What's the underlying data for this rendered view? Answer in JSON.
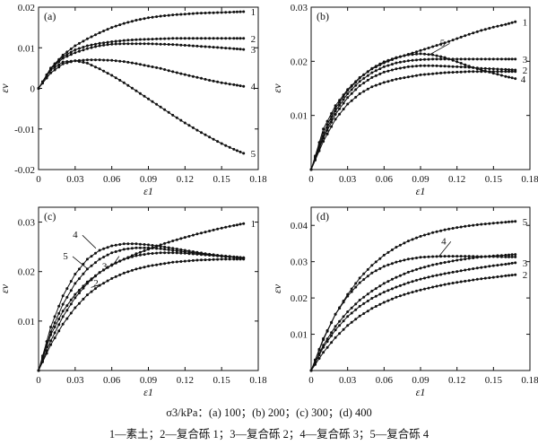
{
  "caption": {
    "line1": "σ3/kPa：(a) 100；(b) 200；(c) 300；(d) 400",
    "line2": "1—素土；2—复合砾 1；3—复合砾 2；4—复合砾 3；5—复合砾 4"
  },
  "colors": {
    "line": "#111111",
    "marker": "#111111",
    "axis": "#111111"
  },
  "chart_data": [
    {
      "type": "line",
      "panel_label": "(a)",
      "xlabel": "ε1",
      "ylabel": "εv",
      "xlim": [
        0,
        0.18
      ],
      "ylim": [
        -0.02,
        0.02
      ],
      "xticks": [
        "0",
        "0.03",
        "0.06",
        "0.09",
        "0.12",
        "0.15",
        "0.18"
      ],
      "yticks": [
        "-0.02",
        "-0.01",
        "0",
        "0.01",
        "0.02"
      ],
      "xticks_v": [
        0,
        0.03,
        0.06,
        0.09,
        0.12,
        0.15,
        0.18
      ],
      "yticks_v": [
        -0.02,
        -0.01,
        0,
        0.01,
        0.02
      ],
      "series": [
        {
          "name": "1",
          "x": [
            0,
            0.01,
            0.02,
            0.03,
            0.04,
            0.05,
            0.06,
            0.07,
            0.08,
            0.09,
            0.1,
            0.11,
            0.12,
            0.13,
            0.14,
            0.15,
            0.16,
            0.168
          ],
          "y": [
            0,
            0.005,
            0.0082,
            0.0105,
            0.0122,
            0.0137,
            0.015,
            0.016,
            0.0168,
            0.0174,
            0.0178,
            0.0181,
            0.0183,
            0.0185,
            0.0186,
            0.0187,
            0.0188,
            0.0189
          ]
        },
        {
          "name": "2",
          "x": [
            0,
            0.01,
            0.02,
            0.03,
            0.04,
            0.05,
            0.06,
            0.07,
            0.08,
            0.09,
            0.1,
            0.11,
            0.12,
            0.13,
            0.14,
            0.15,
            0.16,
            0.168
          ],
          "y": [
            0,
            0.005,
            0.0078,
            0.0095,
            0.0105,
            0.0111,
            0.0115,
            0.0118,
            0.012,
            0.0121,
            0.0122,
            0.0123,
            0.0123,
            0.0123,
            0.0123,
            0.0123,
            0.0123,
            0.0123
          ]
        },
        {
          "name": "3",
          "x": [
            0,
            0.01,
            0.02,
            0.03,
            0.04,
            0.05,
            0.06,
            0.07,
            0.08,
            0.09,
            0.1,
            0.11,
            0.12,
            0.13,
            0.14,
            0.15,
            0.16,
            0.168
          ],
          "y": [
            0,
            0.0048,
            0.0074,
            0.0088,
            0.0098,
            0.0105,
            0.0109,
            0.011,
            0.011,
            0.011,
            0.0109,
            0.0108,
            0.0106,
            0.0104,
            0.0102,
            0.01,
            0.0098,
            0.0096
          ]
        },
        {
          "name": "4",
          "x": [
            0,
            0.01,
            0.02,
            0.03,
            0.04,
            0.05,
            0.06,
            0.07,
            0.08,
            0.09,
            0.1,
            0.11,
            0.12,
            0.13,
            0.14,
            0.15,
            0.16,
            0.168
          ],
          "y": [
            0,
            0.0038,
            0.006,
            0.0068,
            0.007,
            0.007,
            0.0069,
            0.0066,
            0.0061,
            0.0055,
            0.0049,
            0.0041,
            0.0034,
            0.0027,
            0.002,
            0.0014,
            0.0009,
            0.0005
          ]
        },
        {
          "name": "5",
          "x": [
            0,
            0.01,
            0.02,
            0.03,
            0.04,
            0.05,
            0.06,
            0.07,
            0.08,
            0.09,
            0.1,
            0.11,
            0.12,
            0.13,
            0.14,
            0.15,
            0.16,
            0.168
          ],
          "y": [
            0,
            0.0045,
            0.0065,
            0.0068,
            0.0062,
            0.0048,
            0.0032,
            0.0014,
            -0.0006,
            -0.0026,
            -0.0046,
            -0.0066,
            -0.0085,
            -0.0103,
            -0.012,
            -0.0136,
            -0.015,
            -0.016
          ]
        }
      ]
    },
    {
      "type": "line",
      "panel_label": "(b)",
      "xlabel": "ε1",
      "ylabel": "εv",
      "xlim": [
        0,
        0.18
      ],
      "ylim": [
        0,
        0.03
      ],
      "xticks": [
        "0",
        "0.03",
        "0.06",
        "0.09",
        "0.12",
        "0.15",
        "0.18"
      ],
      "yticks": [
        "0.01",
        "0.02",
        "0.03"
      ],
      "xticks_v": [
        0,
        0.03,
        0.06,
        0.09,
        0.12,
        0.15,
        0.18
      ],
      "yticks_v": [
        0.01,
        0.02,
        0.03
      ],
      "series": [
        {
          "name": "1",
          "x": [
            0,
            0.01,
            0.02,
            0.03,
            0.04,
            0.05,
            0.06,
            0.07,
            0.08,
            0.09,
            0.1,
            0.11,
            0.12,
            0.13,
            0.14,
            0.15,
            0.16,
            0.168
          ],
          "y": [
            0,
            0.0075,
            0.0118,
            0.0148,
            0.017,
            0.0186,
            0.0197,
            0.0206,
            0.0213,
            0.022,
            0.0227,
            0.0234,
            0.0242,
            0.025,
            0.0257,
            0.0263,
            0.0268,
            0.0273
          ]
        },
        {
          "name": "2",
          "x": [
            0,
            0.01,
            0.02,
            0.03,
            0.04,
            0.05,
            0.06,
            0.07,
            0.08,
            0.09,
            0.1,
            0.11,
            0.12,
            0.13,
            0.14,
            0.15,
            0.16,
            0.168
          ],
          "y": [
            0,
            0.0058,
            0.0102,
            0.0133,
            0.0155,
            0.017,
            0.018,
            0.0186,
            0.019,
            0.0192,
            0.0192,
            0.0191,
            0.019,
            0.0189,
            0.0187,
            0.0186,
            0.0185,
            0.0184
          ]
        },
        {
          "name": "3",
          "x": [
            0,
            0.01,
            0.02,
            0.03,
            0.04,
            0.05,
            0.06,
            0.07,
            0.08,
            0.09,
            0.1,
            0.11,
            0.12,
            0.13,
            0.14,
            0.15,
            0.16,
            0.168
          ],
          "y": [
            0,
            0.0062,
            0.0108,
            0.014,
            0.0163,
            0.0179,
            0.019,
            0.0197,
            0.0201,
            0.0203,
            0.0204,
            0.0204,
            0.0204,
            0.0204,
            0.0204,
            0.0204,
            0.0204,
            0.0204
          ]
        },
        {
          "name": "4",
          "x": [
            0,
            0.01,
            0.02,
            0.03,
            0.04,
            0.05,
            0.06,
            0.07,
            0.08,
            0.09,
            0.1,
            0.11,
            0.12,
            0.13,
            0.14,
            0.15,
            0.16,
            0.168
          ],
          "y": [
            0,
            0.0052,
            0.0093,
            0.0121,
            0.014,
            0.0153,
            0.0161,
            0.0167,
            0.0171,
            0.0175,
            0.0177,
            0.0179,
            0.018,
            0.0181,
            0.0181,
            0.0181,
            0.0181,
            0.0181
          ]
        },
        {
          "name": "5",
          "x": [
            0,
            0.01,
            0.02,
            0.03,
            0.04,
            0.05,
            0.06,
            0.07,
            0.08,
            0.09,
            0.1,
            0.11,
            0.12,
            0.13,
            0.14,
            0.15,
            0.16,
            0.168
          ],
          "y": [
            0,
            0.0068,
            0.0113,
            0.0146,
            0.0169,
            0.0187,
            0.0199,
            0.0207,
            0.0212,
            0.0214,
            0.0212,
            0.0207,
            0.0199,
            0.0191,
            0.0184,
            0.0178,
            0.0172,
            0.0168
          ]
        }
      ]
    },
    {
      "type": "line",
      "panel_label": "(c)",
      "xlabel": "ε1",
      "ylabel": "εv",
      "xlim": [
        0,
        0.18
      ],
      "ylim": [
        0,
        0.033
      ],
      "xticks": [
        "0",
        "0.03",
        "0.06",
        "0.09",
        "0.12",
        "0.15",
        "0.18"
      ],
      "yticks": [
        "0.01",
        "0.02",
        "0.03"
      ],
      "xticks_v": [
        0,
        0.03,
        0.06,
        0.09,
        0.12,
        0.15,
        0.18
      ],
      "yticks_v": [
        0.01,
        0.02,
        0.03
      ],
      "series": [
        {
          "name": "1",
          "x": [
            0,
            0.01,
            0.02,
            0.03,
            0.04,
            0.05,
            0.06,
            0.07,
            0.08,
            0.09,
            0.1,
            0.11,
            0.12,
            0.13,
            0.14,
            0.15,
            0.16,
            0.168
          ],
          "y": [
            0,
            0.0072,
            0.012,
            0.0154,
            0.0179,
            0.0198,
            0.0213,
            0.0225,
            0.0236,
            0.0245,
            0.0254,
            0.0262,
            0.0269,
            0.0276,
            0.0282,
            0.0288,
            0.0293,
            0.0297
          ]
        },
        {
          "name": "2",
          "x": [
            0,
            0.01,
            0.02,
            0.03,
            0.04,
            0.05,
            0.06,
            0.07,
            0.08,
            0.09,
            0.1,
            0.11,
            0.12,
            0.13,
            0.14,
            0.15,
            0.16,
            0.168
          ],
          "y": [
            0,
            0.0052,
            0.0094,
            0.0127,
            0.0153,
            0.0172,
            0.0186,
            0.0197,
            0.0205,
            0.0211,
            0.0215,
            0.0219,
            0.0221,
            0.0223,
            0.0224,
            0.0225,
            0.0225,
            0.0225
          ]
        },
        {
          "name": "3",
          "x": [
            0,
            0.01,
            0.02,
            0.03,
            0.04,
            0.05,
            0.06,
            0.07,
            0.08,
            0.09,
            0.1,
            0.11,
            0.12,
            0.13,
            0.14,
            0.15,
            0.16,
            0.168
          ],
          "y": [
            0,
            0.006,
            0.0109,
            0.0147,
            0.0176,
            0.0198,
            0.0214,
            0.0225,
            0.0232,
            0.0236,
            0.0238,
            0.0238,
            0.0237,
            0.0235,
            0.0233,
            0.0231,
            0.0229,
            0.0228
          ]
        },
        {
          "name": "4",
          "x": [
            0,
            0.01,
            0.02,
            0.03,
            0.04,
            0.05,
            0.06,
            0.07,
            0.08,
            0.09,
            0.1,
            0.11,
            0.12,
            0.13,
            0.14,
            0.15,
            0.16,
            0.168
          ],
          "y": [
            0,
            0.0088,
            0.0151,
            0.0195,
            0.0225,
            0.0243,
            0.0252,
            0.0256,
            0.0256,
            0.0254,
            0.0251,
            0.0247,
            0.0243,
            0.0239,
            0.0235,
            0.0232,
            0.023,
            0.0228
          ]
        },
        {
          "name": "5",
          "x": [
            0,
            0.01,
            0.02,
            0.03,
            0.04,
            0.05,
            0.06,
            0.07,
            0.08,
            0.09,
            0.1,
            0.11,
            0.12,
            0.13,
            0.14,
            0.15,
            0.16,
            0.168
          ],
          "y": [
            0,
            0.0078,
            0.0134,
            0.0176,
            0.0205,
            0.0225,
            0.0238,
            0.0245,
            0.0248,
            0.0248,
            0.0246,
            0.0243,
            0.024,
            0.0237,
            0.0234,
            0.0231,
            0.0229,
            0.0227
          ]
        }
      ]
    },
    {
      "type": "line",
      "panel_label": "(d)",
      "xlabel": "ε1",
      "ylabel": "εv",
      "xlim": [
        0,
        0.18
      ],
      "ylim": [
        0,
        0.045
      ],
      "xticks": [
        "0",
        "0.03",
        "0.06",
        "0.09",
        "0.12",
        "0.15",
        "0.18"
      ],
      "yticks": [
        "0.01",
        "0.02",
        "0.03",
        "0.04"
      ],
      "xticks_v": [
        0,
        0.03,
        0.06,
        0.09,
        0.12,
        0.15,
        0.18
      ],
      "yticks_v": [
        0.01,
        0.02,
        0.03,
        0.04
      ],
      "series": [
        {
          "name": "1",
          "x": [
            0,
            0.01,
            0.02,
            0.03,
            0.04,
            0.05,
            0.06,
            0.07,
            0.08,
            0.09,
            0.1,
            0.11,
            0.12,
            0.13,
            0.14,
            0.15,
            0.16,
            0.168
          ],
          "y": [
            0,
            0.007,
            0.0122,
            0.0162,
            0.0194,
            0.0219,
            0.024,
            0.0257,
            0.0271,
            0.0282,
            0.0291,
            0.0298,
            0.0304,
            0.0309,
            0.0313,
            0.0316,
            0.0318,
            0.032
          ]
        },
        {
          "name": "2",
          "x": [
            0,
            0.01,
            0.02,
            0.03,
            0.04,
            0.05,
            0.06,
            0.07,
            0.08,
            0.09,
            0.1,
            0.11,
            0.12,
            0.13,
            0.14,
            0.15,
            0.16,
            0.168
          ],
          "y": [
            0,
            0.005,
            0.0091,
            0.0124,
            0.015,
            0.0171,
            0.0188,
            0.0202,
            0.0213,
            0.0222,
            0.023,
            0.0237,
            0.0243,
            0.0248,
            0.0253,
            0.0257,
            0.0261,
            0.0264
          ]
        },
        {
          "name": "3",
          "x": [
            0,
            0.01,
            0.02,
            0.03,
            0.04,
            0.05,
            0.06,
            0.07,
            0.08,
            0.09,
            0.1,
            0.11,
            0.12,
            0.13,
            0.14,
            0.15,
            0.16,
            0.168
          ],
          "y": [
            0,
            0.0064,
            0.0112,
            0.0149,
            0.0177,
            0.0199,
            0.0216,
            0.023,
            0.0242,
            0.0252,
            0.026,
            0.0267,
            0.0273,
            0.0279,
            0.0284,
            0.0289,
            0.0293,
            0.0297
          ]
        },
        {
          "name": "4",
          "x": [
            0,
            0.01,
            0.02,
            0.03,
            0.04,
            0.05,
            0.06,
            0.07,
            0.08,
            0.09,
            0.1,
            0.11,
            0.12,
            0.13,
            0.14,
            0.15,
            0.16,
            0.168
          ],
          "y": [
            0,
            0.0088,
            0.0155,
            0.0205,
            0.0242,
            0.0269,
            0.0287,
            0.0299,
            0.0307,
            0.0312,
            0.0314,
            0.0315,
            0.0315,
            0.0315,
            0.0314,
            0.0314,
            0.0313,
            0.0313
          ]
        },
        {
          "name": "5",
          "x": [
            0,
            0.01,
            0.02,
            0.03,
            0.04,
            0.05,
            0.06,
            0.07,
            0.08,
            0.09,
            0.1,
            0.11,
            0.12,
            0.13,
            0.14,
            0.15,
            0.16,
            0.168
          ],
          "y": [
            0,
            0.0085,
            0.0155,
            0.021,
            0.0255,
            0.029,
            0.0318,
            0.034,
            0.0357,
            0.037,
            0.038,
            0.0388,
            0.0394,
            0.0399,
            0.0403,
            0.0406,
            0.0409,
            0.0411
          ]
        }
      ]
    }
  ]
}
